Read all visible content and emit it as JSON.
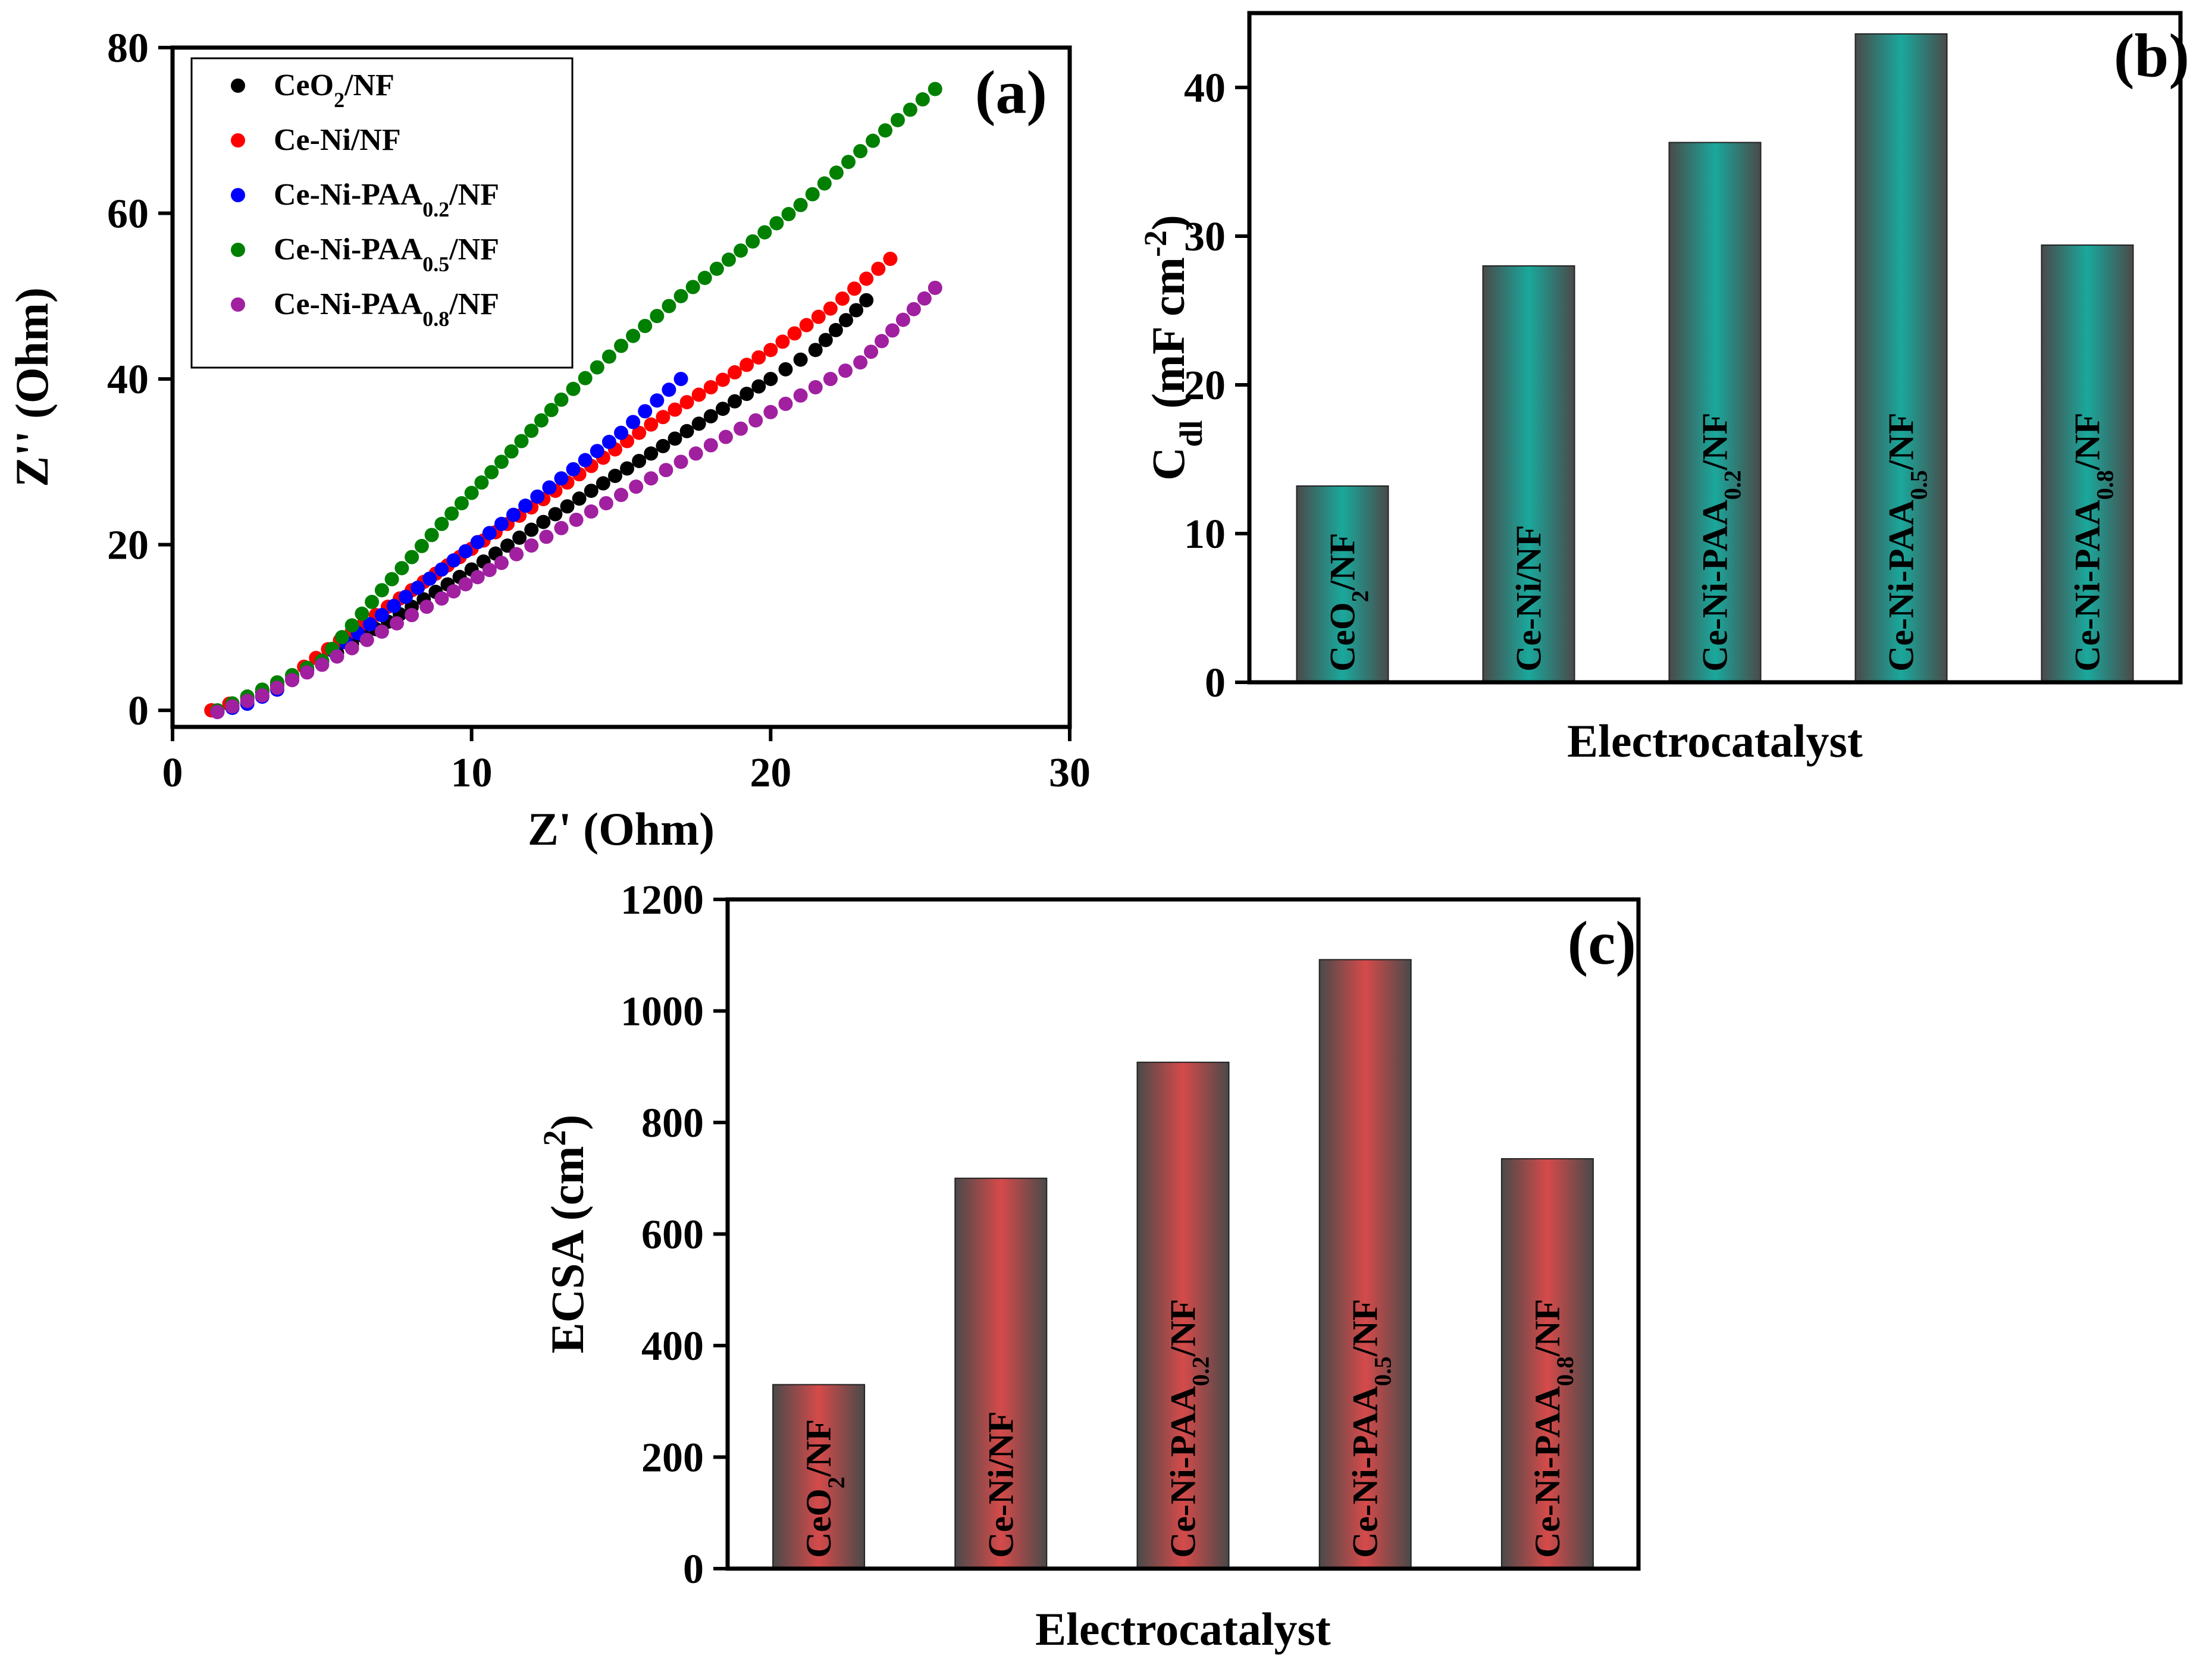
{
  "figure": {
    "panels": [
      "(a)",
      "(b)",
      "(c)"
    ]
  },
  "chart_data": [
    {
      "type": "scatter",
      "panel": "(a)",
      "xlabel": "Z' (Ohm)",
      "ylabel": "Z'' (Ohm)",
      "xlim": [
        0,
        30
      ],
      "ylim": [
        -2,
        80
      ],
      "xticks": [
        0,
        10,
        20,
        30
      ],
      "yticks": [
        0,
        20,
        40,
        60,
        80
      ],
      "legend_position": "top-left",
      "series": [
        {
          "name": "CeO₂/NF",
          "base": "CeO",
          "sub": "2",
          "suffix": "/NF",
          "color": "#000000",
          "points": [
            [
              1.3,
              0
            ],
            [
              2.5,
              1.5
            ],
            [
              4,
              3.8
            ],
            [
              6,
              8
            ],
            [
              8,
              12.5
            ],
            [
              10,
              17
            ],
            [
              12,
              21.8
            ],
            [
              14,
              26.5
            ],
            [
              16,
              31
            ],
            [
              18,
              35.5
            ],
            [
              20,
              40
            ],
            [
              21.5,
              43.5
            ],
            [
              23.2,
              49.5
            ]
          ]
        },
        {
          "name": "Ce-Ni/NF",
          "base": "Ce-Ni/NF",
          "sub": "",
          "suffix": "",
          "color": "#ff0000",
          "points": [
            [
              1.3,
              0
            ],
            [
              2.5,
              1.6
            ],
            [
              4,
              4.2
            ],
            [
              6,
              9.5
            ],
            [
              8,
              14.5
            ],
            [
              10,
              19.5
            ],
            [
              12,
              24.5
            ],
            [
              14,
              29.5
            ],
            [
              16,
              34.5
            ],
            [
              18,
              39
            ],
            [
              20,
              43.5
            ],
            [
              22,
              48.5
            ],
            [
              24,
              54.5
            ]
          ]
        },
        {
          "name": "Ce-Ni-PAA₀.₂/NF",
          "base": "Ce-Ni-PAA",
          "sub": "0.2",
          "suffix": "/NF",
          "color": "#0000ff",
          "points": [
            [
              1.5,
              -0.2
            ],
            [
              2.5,
              0.8
            ],
            [
              3.5,
              2.5
            ],
            [
              5,
              6
            ],
            [
              7,
              11.5
            ],
            [
              9,
              17
            ],
            [
              11,
              22.5
            ],
            [
              13,
              28
            ],
            [
              15,
              33.5
            ],
            [
              17,
              40
            ]
          ]
        },
        {
          "name": "Ce-Ni-PAA₀.₅/NF",
          "base": "Ce-Ni-PAA",
          "sub": "0.5",
          "suffix": "/NF",
          "color": "#008000",
          "points": [
            [
              1.5,
              0
            ],
            [
              3,
              2.5
            ],
            [
              5,
              6
            ],
            [
              7,
              14.5
            ],
            [
              9,
              22.5
            ],
            [
              11,
              30
            ],
            [
              13,
              37.5
            ],
            [
              15,
              44
            ],
            [
              17,
              50
            ],
            [
              19,
              55.5
            ],
            [
              21,
              61
            ],
            [
              23,
              67.5
            ],
            [
              25.5,
              75
            ]
          ]
        },
        {
          "name": "Ce-Ni-PAA₀.₈/NF",
          "base": "Ce-Ni-PAA",
          "sub": "0.8",
          "suffix": "/NF",
          "color": "#a020a0",
          "points": [
            [
              1.5,
              -0.2
            ],
            [
              3,
              1.8
            ],
            [
              5,
              5.5
            ],
            [
              7,
              9.5
            ],
            [
              9,
              13.5
            ],
            [
              11,
              17.8
            ],
            [
              13,
              22
            ],
            [
              15,
              26
            ],
            [
              17,
              30
            ],
            [
              19,
              34
            ],
            [
              21,
              38
            ],
            [
              23,
              42
            ],
            [
              25.5,
              51
            ]
          ]
        }
      ]
    },
    {
      "type": "bar",
      "panel": "(b)",
      "xlabel": "Electrocatalyst",
      "ylabel": "C",
      "ylabel_sub": "dl",
      "ylabel_unit": "(mF cm",
      "ylabel_sup": "-2",
      "ylabel_close": ")",
      "ylim": [
        0,
        45
      ],
      "yticks": [
        0,
        10,
        20,
        30,
        40
      ],
      "bar_color": "#1aa89c",
      "categories": [
        {
          "name": "CeO₂/NF",
          "base": "CeO",
          "sub": "2",
          "suffix": "/NF"
        },
        {
          "name": "Ce-Ni/NF",
          "base": "Ce-Ni/NF",
          "sub": "",
          "suffix": ""
        },
        {
          "name": "Ce-Ni-PAA₀.₂/NF",
          "base": "Ce-Ni-PAA",
          "sub": "0.2",
          "suffix": "/NF"
        },
        {
          "name": "Ce-Ni-PAA₀.₅/NF",
          "base": "Ce-Ni-PAA",
          "sub": "0.5",
          "suffix": "/NF"
        },
        {
          "name": "Ce-Ni-PAA₀.₈/NF",
          "base": "Ce-Ni-PAA",
          "sub": "0.8",
          "suffix": "/NF"
        }
      ],
      "values": [
        13.2,
        28.0,
        36.3,
        43.6,
        29.4
      ]
    },
    {
      "type": "bar",
      "panel": "(c)",
      "xlabel": "Electrocatalyst",
      "ylabel": "ECSA (cm",
      "ylabel_sup": "2",
      "ylabel_close": ")",
      "ylim": [
        0,
        1200
      ],
      "yticks": [
        0,
        200,
        400,
        600,
        800,
        1000,
        1200
      ],
      "bar_color": "#d64a4a",
      "categories": [
        {
          "name": "CeO₂/NF",
          "base": "CeO",
          "sub": "2",
          "suffix": "/NF"
        },
        {
          "name": "Ce-Ni/NF",
          "base": "Ce-Ni/NF",
          "sub": "",
          "suffix": ""
        },
        {
          "name": "Ce-Ni-PAA₀.₂/NF",
          "base": "Ce-Ni-PAA",
          "sub": "0.2",
          "suffix": "/NF"
        },
        {
          "name": "Ce-Ni-PAA₀.₅/NF",
          "base": "Ce-Ni-PAA",
          "sub": "0.5",
          "suffix": "/NF"
        },
        {
          "name": "Ce-Ni-PAA₀.₈/NF",
          "base": "Ce-Ni-PAA",
          "sub": "0.8",
          "suffix": "/NF"
        }
      ],
      "values": [
        330,
        700,
        908,
        1092,
        735
      ]
    }
  ]
}
